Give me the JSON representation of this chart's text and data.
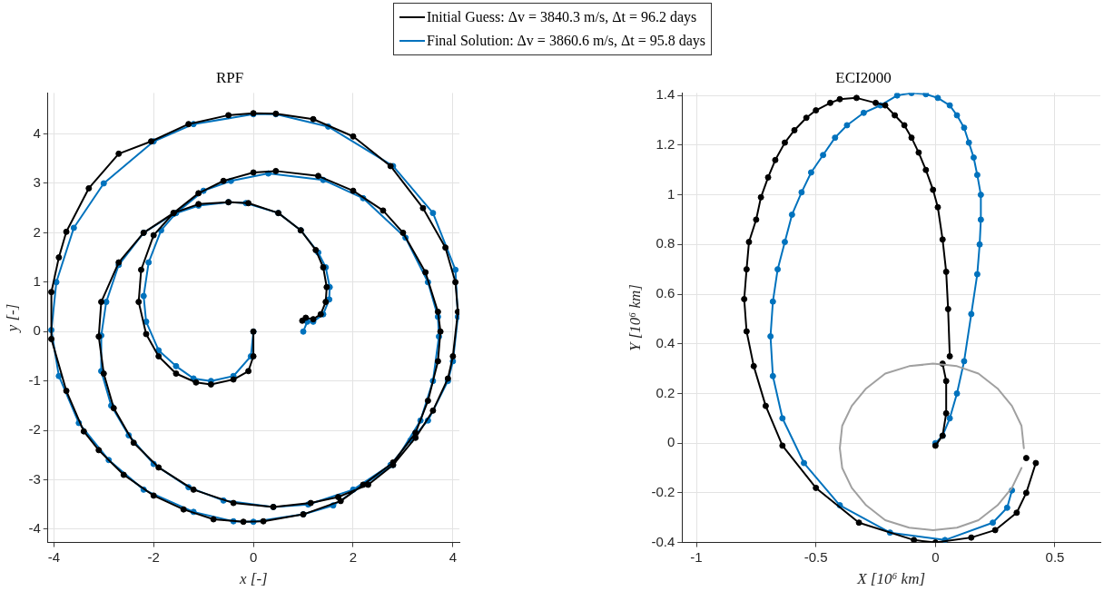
{
  "chart_data": [
    {
      "type": "line",
      "title": "RPF",
      "xlabel": "x [-]",
      "ylabel": "y [-]",
      "xlim": [
        -4.12,
        4.13
      ],
      "ylim": [
        -4.27,
        4.83
      ],
      "xticks": [
        -4,
        -2,
        0,
        2,
        4
      ],
      "yticks": [
        -4,
        -3,
        -2,
        -1,
        0,
        1,
        2,
        3,
        4
      ],
      "grid": true,
      "legend": "top",
      "marker": "circle",
      "line_style": "solid",
      "series": [
        {
          "name": "Initial Guess: Δv = 3840.3 m/s, Δt = 96.2 days",
          "color": "#000000",
          "x": [
            0,
            0,
            -0.1,
            -0.4,
            -0.85,
            -1.15,
            -1.55,
            -1.9,
            -2.15,
            -2.3,
            -2.25,
            -2.0,
            -1.6,
            -1.1,
            -0.6,
            0,
            0.45,
            1.3,
            2.0,
            2.6,
            3.0,
            3.45,
            3.7,
            3.75,
            3.7,
            3.5,
            3.25,
            2.8,
            2.2,
            1.75,
            1.0,
            0.2,
            -0.2,
            -0.8,
            -1.4,
            -2.0,
            -2.6,
            -3.1,
            -3.4,
            -3.75,
            -4.05,
            -4.05,
            -3.9,
            -3.75,
            -3.3,
            -2.7,
            -2.05,
            -1.3,
            -0.5,
            0,
            0.45,
            1.2,
            2.0,
            2.75,
            3.4,
            3.85,
            4.05,
            4.1,
            4.0,
            3.9,
            3.6,
            3.25,
            2.8,
            2.3,
            1.7,
            1.15,
            0.4,
            -0.4,
            -1.2,
            -1.9,
            -2.4,
            -2.8,
            -3.0,
            -3.1,
            -3.05,
            -2.7,
            -2.2,
            -1.6,
            -1.1,
            -0.5,
            -0.1,
            0.5,
            0.95,
            1.25,
            1.4,
            1.47,
            1.45,
            1.35,
            1.2,
            1.05,
            0.98
          ],
          "values": [
            0,
            -0.5,
            -0.8,
            -0.97,
            -1.07,
            -1.03,
            -0.85,
            -0.5,
            -0.05,
            0.6,
            1.25,
            1.95,
            2.4,
            2.8,
            3.05,
            3.22,
            3.25,
            3.15,
            2.85,
            2.45,
            2.0,
            1.2,
            0.4,
            0,
            -0.6,
            -1.4,
            -2.05,
            -2.65,
            -3.1,
            -3.43,
            -3.7,
            -3.84,
            -3.85,
            -3.8,
            -3.6,
            -3.32,
            -2.9,
            -2.4,
            -2.02,
            -1.2,
            -0.15,
            0.8,
            1.5,
            2.02,
            2.9,
            3.6,
            3.85,
            4.2,
            4.38,
            4.42,
            4.41,
            4.3,
            3.95,
            3.35,
            2.5,
            1.7,
            1.0,
            0.4,
            -0.5,
            -0.95,
            -1.6,
            -2.15,
            -2.7,
            -3.1,
            -3.35,
            -3.47,
            -3.55,
            -3.47,
            -3.2,
            -2.75,
            -2.25,
            -1.55,
            -0.85,
            -0.1,
            0.6,
            1.4,
            2.0,
            2.4,
            2.58,
            2.62,
            2.6,
            2.4,
            2.05,
            1.65,
            1.3,
            0.9,
            0.6,
            0.35,
            0.25,
            0.28,
            0.22
          ]
        },
        {
          "name": "Final Solution: Δv = 3860.6 m/s, Δt = 95.8 days",
          "color": "#0072bd",
          "x": [
            0,
            -0.05,
            -0.4,
            -0.85,
            -1.2,
            -1.55,
            -1.9,
            -2.15,
            -2.2,
            -2.1,
            -1.85,
            -1.55,
            -1.0,
            -0.45,
            0.3,
            1.4,
            2.2,
            3.05,
            3.5,
            3.7,
            3.72,
            3.6,
            3.35,
            2.8,
            1.6,
            1.0,
            0,
            -0.4,
            -1.2,
            -2.2,
            -2.9,
            -3.5,
            -3.9,
            -4.05,
            -3.95,
            -3.6,
            -3.0,
            -2.0,
            -1.2,
            0,
            0.45,
            1.5,
            2.8,
            3.6,
            4.05,
            4.1,
            4.0,
            3.9,
            3.5,
            3.15,
            2.75,
            2.0,
            1.1,
            0.4,
            -0.6,
            -1.3,
            -2.0,
            -2.5,
            -2.85,
            -3.05,
            -3.05,
            -2.95,
            -2.7,
            -2.2,
            -1.6,
            -1.1,
            -0.5,
            -0.15,
            0.5,
            0.95,
            1.3,
            1.45,
            1.53,
            1.52,
            1.4,
            1.2,
            1.08,
            1.0
          ],
          "values": [
            0,
            -0.5,
            -0.9,
            -1.0,
            -0.95,
            -0.7,
            -0.38,
            0.2,
            0.72,
            1.4,
            2.05,
            2.4,
            2.85,
            3.05,
            3.2,
            3.07,
            2.7,
            1.9,
            1.0,
            0.3,
            -0.1,
            -1.0,
            -1.8,
            -2.7,
            -3.52,
            -3.7,
            -3.85,
            -3.84,
            -3.65,
            -3.2,
            -2.6,
            -1.85,
            -0.9,
            0.03,
            1.0,
            2.1,
            3.0,
            3.85,
            4.2,
            4.4,
            4.4,
            4.15,
            3.35,
            2.4,
            1.25,
            0.3,
            -0.6,
            -1.0,
            -1.8,
            -2.2,
            -2.7,
            -3.2,
            -3.5,
            -3.55,
            -3.42,
            -3.15,
            -2.68,
            -2.1,
            -1.5,
            -0.8,
            -0.08,
            0.6,
            1.35,
            2.0,
            2.38,
            2.55,
            2.62,
            2.6,
            2.4,
            2.05,
            1.6,
            1.3,
            0.9,
            0.65,
            0.35,
            0.2,
            0.2,
            0
          ]
        }
      ]
    },
    {
      "type": "line",
      "title": "ECI2000",
      "xlabel": "X [10⁶ km]",
      "ylabel": "Y [10⁶ km]",
      "xlim": [
        -1.06,
        0.69
      ],
      "ylim": [
        -0.4,
        1.41
      ],
      "xticks": [
        -1,
        -0.5,
        0,
        0.5
      ],
      "yticks": [
        -0.4,
        -0.2,
        0,
        0.2,
        0.4,
        0.6,
        0.8,
        1,
        1.2,
        1.4
      ],
      "grid": true,
      "marker": "circle",
      "line_style": "solid",
      "series": [
        {
          "color": "#a0a0a0",
          "marker": "none",
          "x": [
            0.37,
            0.36,
            0.32,
            0.26,
            0.18,
            0.09,
            -0.01,
            -0.11,
            -0.21,
            -0.29,
            -0.35,
            -0.39,
            -0.4,
            -0.39,
            -0.35,
            -0.29,
            -0.21,
            -0.11,
            -0.01,
            0.09,
            0.18,
            0.26,
            0.32,
            0.36
          ],
          "values": [
            -0.02,
            0.07,
            0.15,
            0.22,
            0.28,
            0.31,
            0.32,
            0.31,
            0.28,
            0.22,
            0.15,
            0.07,
            -0.02,
            -0.1,
            -0.18,
            -0.25,
            -0.31,
            -0.34,
            -0.35,
            -0.34,
            -0.31,
            -0.25,
            -0.18,
            -0.1
          ]
        },
        {
          "color": "#000000",
          "x": [
            0,
            0.03,
            0.045,
            0.045,
            0.03,
            null,
            0.06,
            0.053,
            0.045,
            0.03,
            0.01,
            -0.01,
            -0.04,
            -0.07,
            -0.1,
            -0.13,
            -0.17,
            -0.21,
            -0.25,
            -0.33,
            -0.4,
            -0.44,
            -0.5,
            -0.54,
            -0.59,
            -0.63,
            -0.67,
            -0.7,
            -0.73,
            -0.75,
            -0.78,
            -0.79,
            -0.8,
            -0.79,
            -0.76,
            -0.71,
            -0.64,
            -0.5,
            -0.32,
            -0.09,
            0,
            0.15,
            0.25,
            0.34,
            0.38,
            0.42,
            null,
            0.38
          ],
          "values": [
            -0.01,
            0.03,
            0.12,
            0.25,
            0.32,
            null,
            0.35,
            0.54,
            0.69,
            0.82,
            0.95,
            1.02,
            1.1,
            1.17,
            1.23,
            1.28,
            1.32,
            1.36,
            1.37,
            1.39,
            1.385,
            1.37,
            1.34,
            1.31,
            1.26,
            1.21,
            1.14,
            1.07,
            0.99,
            0.9,
            0.81,
            0.7,
            0.58,
            0.45,
            0.31,
            0.15,
            -0.01,
            -0.18,
            -0.32,
            -0.39,
            -0.4,
            -0.38,
            -0.35,
            -0.28,
            -0.2,
            -0.08,
            null,
            -0.06
          ]
        },
        {
          "color": "#0072bd",
          "x": [
            0,
            0.03,
            0.06,
            0.09,
            0.12,
            0.15,
            0.175,
            0.185,
            0.19,
            0.19,
            0.175,
            0.16,
            0.14,
            0.12,
            0.09,
            0.06,
            0.01,
            -0.04,
            -0.1,
            -0.16,
            -0.23,
            -0.3,
            -0.37,
            -0.42,
            -0.47,
            -0.52,
            -0.56,
            -0.6,
            -0.63,
            -0.66,
            -0.68,
            -0.69,
            -0.68,
            -0.64,
            -0.55,
            -0.4,
            -0.19,
            0.04,
            0.24,
            0.3,
            0.32
          ],
          "values": [
            0,
            0.03,
            0.1,
            0.2,
            0.33,
            0.52,
            0.68,
            0.8,
            0.9,
            1.0,
            1.08,
            1.15,
            1.21,
            1.27,
            1.32,
            1.36,
            1.39,
            1.405,
            1.41,
            1.4,
            1.36,
            1.33,
            1.28,
            1.23,
            1.16,
            1.09,
            1.01,
            0.92,
            0.81,
            0.7,
            0.57,
            0.43,
            0.27,
            0.1,
            -0.08,
            -0.25,
            -0.36,
            -0.39,
            -0.32,
            -0.26,
            -0.19
          ]
        }
      ]
    }
  ]
}
